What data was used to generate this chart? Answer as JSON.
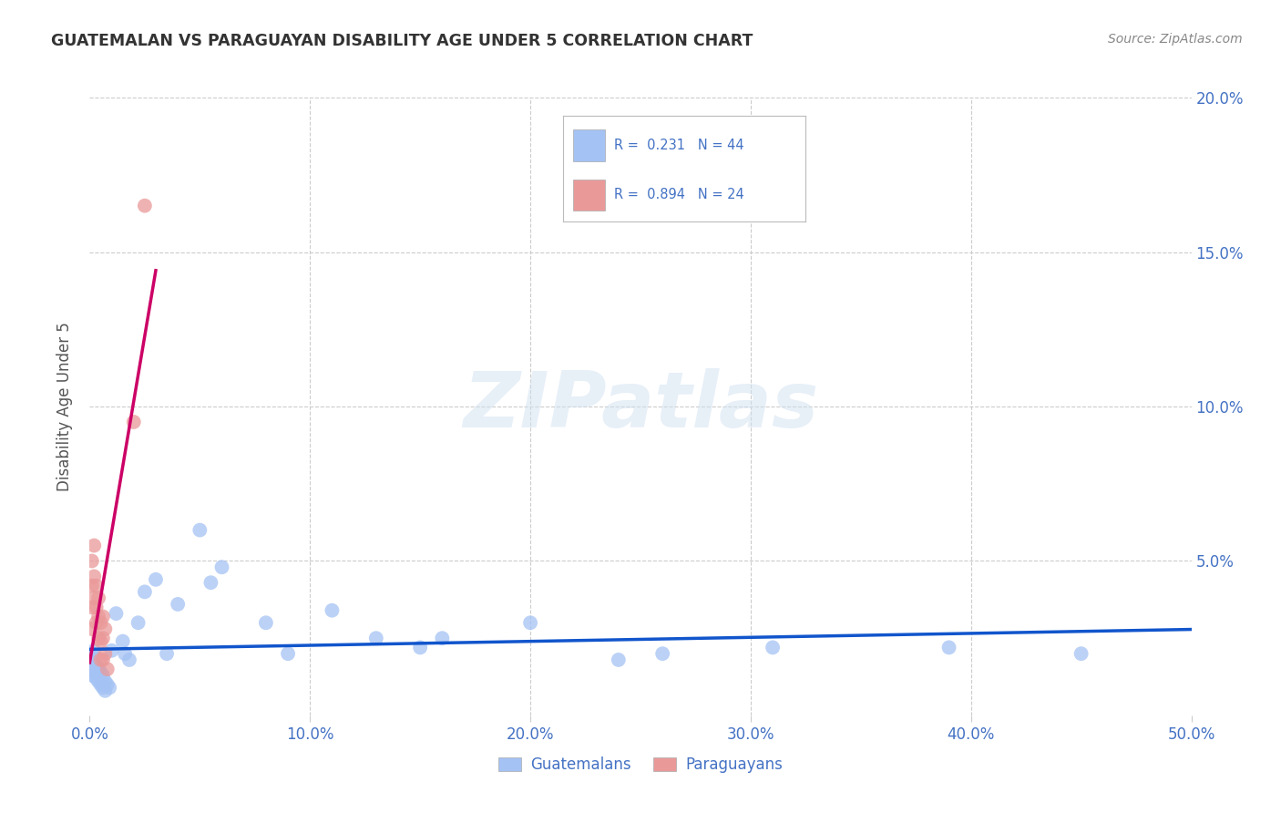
{
  "title": "GUATEMALAN VS PARAGUAYAN DISABILITY AGE UNDER 5 CORRELATION CHART",
  "source": "Source: ZipAtlas.com",
  "ylabel": "Disability Age Under 5",
  "xlim": [
    0.0,
    0.5
  ],
  "ylim": [
    0.0,
    0.2
  ],
  "xticklabels": [
    "0.0%",
    "10.0%",
    "20.0%",
    "30.0%",
    "40.0%",
    "50.0%"
  ],
  "yticklabels_right": [
    "5.0%",
    "10.0%",
    "15.0%",
    "20.0%"
  ],
  "blue_scatter_color": "#a4c2f4",
  "pink_scatter_color": "#ea9999",
  "blue_line_color": "#1155cc",
  "pink_line_color": "#cc0066",
  "tick_color": "#4472c4",
  "grid_color": "#cccccc",
  "watermark": "ZIPatlas",
  "legend_label_blue": "R =  0.231   N = 44",
  "legend_label_pink": "R =  0.894   N = 24",
  "legend_guatemalans": "Guatemalans",
  "legend_paraguayans": "Paraguayans",
  "guatemalan_x": [
    0.001,
    0.001,
    0.001,
    0.001,
    0.002,
    0.002,
    0.002,
    0.003,
    0.003,
    0.004,
    0.004,
    0.005,
    0.005,
    0.006,
    0.006,
    0.007,
    0.007,
    0.008,
    0.009,
    0.01,
    0.012,
    0.015,
    0.016,
    0.018,
    0.022,
    0.025,
    0.03,
    0.035,
    0.04,
    0.05,
    0.055,
    0.06,
    0.08,
    0.09,
    0.11,
    0.13,
    0.15,
    0.16,
    0.2,
    0.24,
    0.26,
    0.31,
    0.39,
    0.45
  ],
  "guatemalan_y": [
    0.02,
    0.018,
    0.015,
    0.013,
    0.021,
    0.017,
    0.014,
    0.016,
    0.012,
    0.015,
    0.011,
    0.014,
    0.01,
    0.013,
    0.009,
    0.011,
    0.008,
    0.01,
    0.009,
    0.021,
    0.033,
    0.024,
    0.02,
    0.018,
    0.03,
    0.04,
    0.044,
    0.02,
    0.036,
    0.06,
    0.043,
    0.048,
    0.03,
    0.02,
    0.034,
    0.025,
    0.022,
    0.025,
    0.03,
    0.018,
    0.02,
    0.022,
    0.022,
    0.02
  ],
  "paraguayan_x": [
    0.001,
    0.001,
    0.001,
    0.001,
    0.002,
    0.002,
    0.002,
    0.003,
    0.003,
    0.003,
    0.004,
    0.004,
    0.004,
    0.005,
    0.005,
    0.005,
    0.006,
    0.006,
    0.006,
    0.007,
    0.007,
    0.008,
    0.02,
    0.025
  ],
  "paraguayan_y": [
    0.05,
    0.042,
    0.035,
    0.028,
    0.055,
    0.045,
    0.038,
    0.042,
    0.035,
    0.03,
    0.038,
    0.032,
    0.025,
    0.03,
    0.024,
    0.018,
    0.032,
    0.025,
    0.018,
    0.028,
    0.02,
    0.015,
    0.095,
    0.165
  ]
}
